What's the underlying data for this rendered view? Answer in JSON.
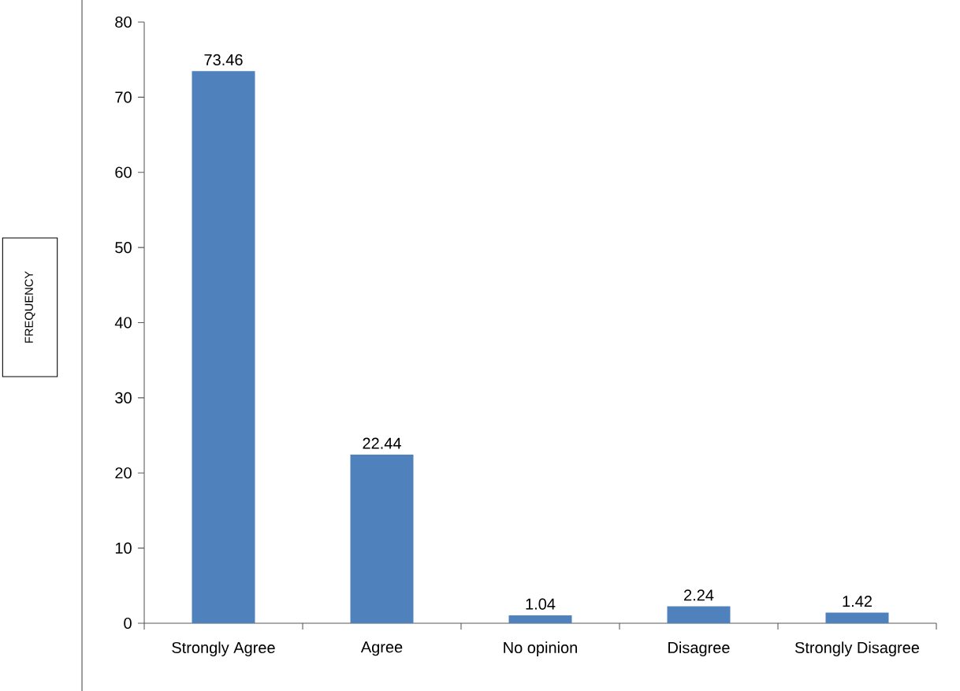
{
  "chart_data": {
    "type": "bar",
    "annotations": [
      "FREQUENCY"
    ],
    "categories": [
      "Strongly Agree",
      "Agree",
      "No opinion",
      "Disagree",
      "Strongly Disagree"
    ],
    "values": [
      73.46,
      22.44,
      1.04,
      2.24,
      1.42
    ],
    "color": "#4f81bd",
    "data_labels": true,
    "ylim": [
      0,
      80
    ],
    "yticks": [
      0,
      10,
      20,
      30,
      40,
      50,
      60,
      70,
      80
    ]
  }
}
